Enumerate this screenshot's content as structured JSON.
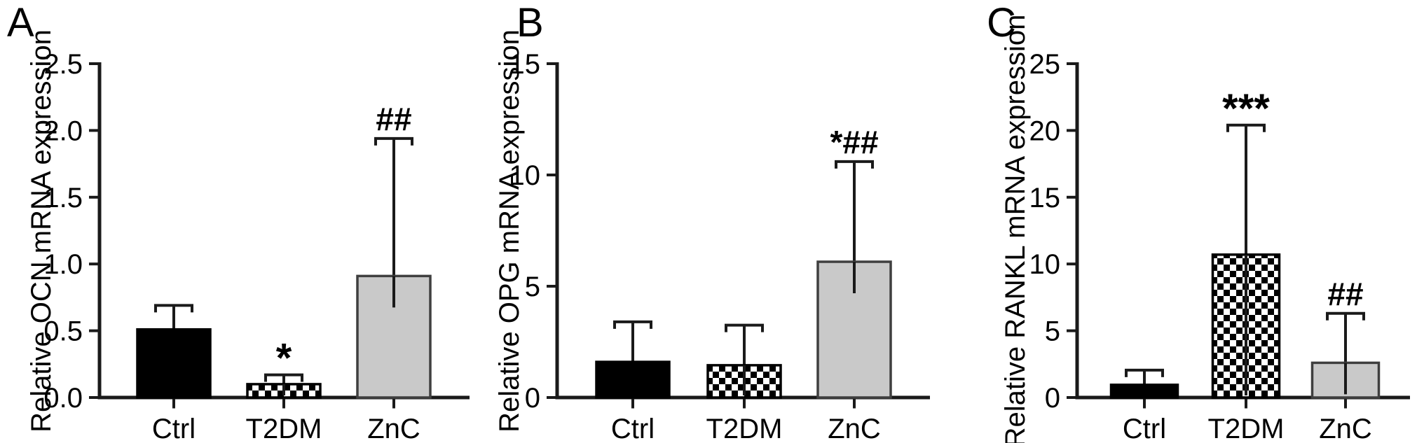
{
  "figure": {
    "description": "Three-panel bar chart figure of relative mRNA expression (OCN, OPG, RANKL) in Ctrl, T2DM and ZnC groups",
    "background": "#ffffff"
  },
  "colors": {
    "axis": "#1a1a1a",
    "text": "#000000",
    "bar_black": "#000000",
    "bar_gray_fill": "#c9c9c9",
    "bar_gray_stroke": "#3f3f3f",
    "checker_black": "#000000",
    "checker_white": "#ffffff"
  },
  "chart_data": [
    {
      "type": "bar",
      "panel": "A",
      "title": "",
      "xlabel": "",
      "ylabel": "Relative OCN mRNA expression",
      "ylim": [
        0,
        2.5
      ],
      "yticks": [
        0,
        0.5,
        1.0,
        1.5,
        2.0,
        2.5
      ],
      "ytick_labels": [
        "0.0",
        "0.5",
        "1.0",
        "1.5",
        "2.0",
        "2.5"
      ],
      "grid": false,
      "legend": "none",
      "categories": [
        "Ctrl",
        "T2DM",
        "ZnC"
      ],
      "bars": [
        {
          "category": "Ctrl",
          "value": 0.51,
          "error_top": 0.69,
          "style": "solid-black",
          "annotation": ""
        },
        {
          "category": "T2DM",
          "value": 0.1,
          "error_top": 0.17,
          "style": "checker",
          "annotation": "*"
        },
        {
          "category": "ZnC",
          "value": 0.91,
          "error_top": 1.94,
          "style": "light-gray",
          "annotation": "##"
        }
      ]
    },
    {
      "type": "bar",
      "panel": "B",
      "title": "",
      "xlabel": "",
      "ylabel": "Relative OPG mRNA expression",
      "ylim": [
        0,
        15
      ],
      "yticks": [
        0,
        5,
        10,
        15
      ],
      "ytick_labels": [
        "0",
        "5",
        "10",
        "15"
      ],
      "grid": false,
      "legend": "none",
      "categories": [
        "Ctrl",
        "T2DM",
        "ZnC"
      ],
      "bars": [
        {
          "category": "Ctrl",
          "value": 1.6,
          "error_top": 3.4,
          "style": "solid-black",
          "annotation": ""
        },
        {
          "category": "T2DM",
          "value": 1.45,
          "error_top": 3.25,
          "style": "checker",
          "annotation": ""
        },
        {
          "category": "ZnC",
          "value": 6.1,
          "error_top": 10.6,
          "style": "light-gray",
          "annotation": "*##"
        }
      ]
    },
    {
      "type": "bar",
      "panel": "C",
      "title": "",
      "xlabel": "",
      "ylabel": "Relative RANKL mRNA expression",
      "ylim": [
        0,
        25
      ],
      "yticks": [
        0,
        5,
        10,
        15,
        20,
        25
      ],
      "ytick_labels": [
        "0",
        "5",
        "10",
        "15",
        "20",
        "25"
      ],
      "grid": false,
      "legend": "none",
      "categories": [
        "Ctrl",
        "T2DM",
        "ZnC"
      ],
      "bars": [
        {
          "category": "Ctrl",
          "value": 0.95,
          "error_top": 2.05,
          "style": "solid-black",
          "annotation": ""
        },
        {
          "category": "T2DM",
          "value": 10.7,
          "error_top": 20.4,
          "style": "checker",
          "annotation": "***"
        },
        {
          "category": "ZnC",
          "value": 2.6,
          "error_top": 6.3,
          "style": "light-gray",
          "annotation": "##"
        }
      ]
    }
  ]
}
